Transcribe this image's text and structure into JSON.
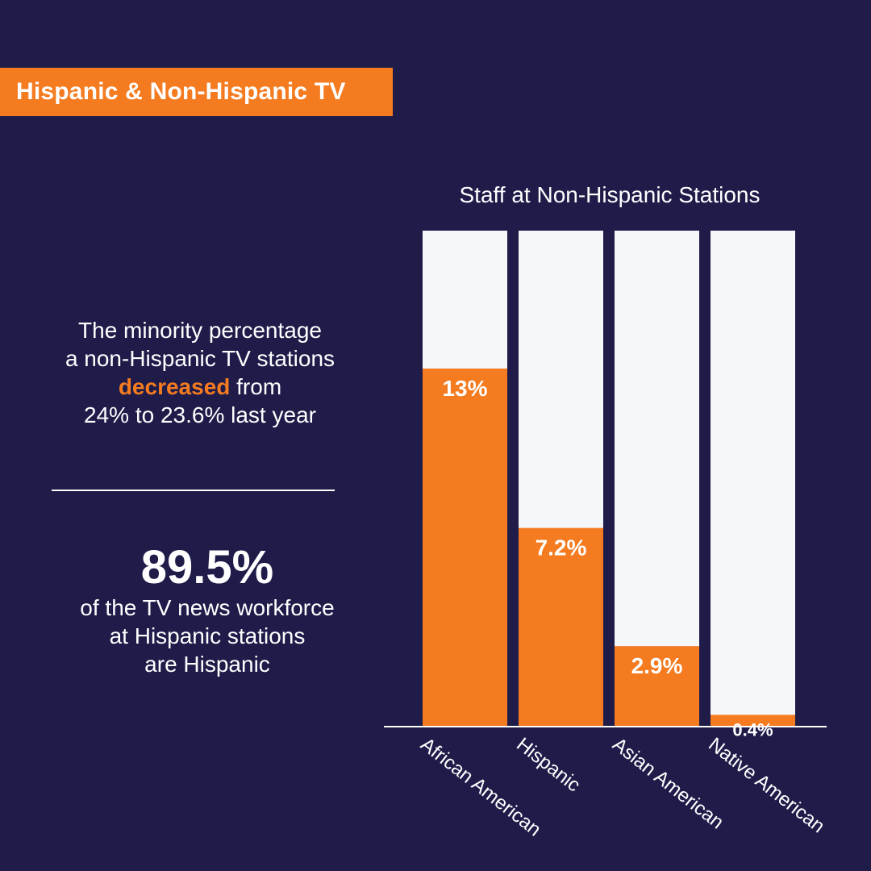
{
  "banner": {
    "title": "Hispanic & Non-Hispanic TV"
  },
  "left_panel": {
    "line1": "The minority percentage",
    "line2": "a non-Hispanic TV stations",
    "highlight": "decreased",
    "line3_rest": " from",
    "line4": "24% to 23.6% last year",
    "stat_value": "89.5%",
    "stat_line1": "of the TV news workforce",
    "stat_line2": "at Hispanic stations",
    "stat_line3": "are Hispanic"
  },
  "colors": {
    "background": "#1f1c4a",
    "accent": "#f47b20",
    "bar_track": "#f5f7f9",
    "text": "#ffffff"
  },
  "chart_data": {
    "type": "bar",
    "title": "Staff at Non-Hispanic Stations",
    "categories": [
      "African American",
      "Hispanic",
      "Asian American",
      "Native American"
    ],
    "values": [
      13,
      7.2,
      2.9,
      0.4
    ],
    "labels": [
      "13%",
      "7.2%",
      "2.9%",
      "0.4%"
    ],
    "xlabel": "",
    "ylabel": "",
    "ylim": [
      0,
      13
    ],
    "grid": false
  }
}
